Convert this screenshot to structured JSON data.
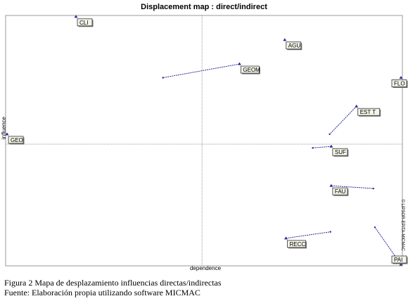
{
  "caption": {
    "line1": "Figura 2 Mapa de desplazamiento influencias directas/indirectas",
    "line2": "Fuente: Elaboración propia utilizando software MICMAC"
  },
  "colors": {
    "vector": "#2a2a9a",
    "axis": "#999999",
    "frame": "#9a9a9a",
    "label_bg": "#f4f4e8"
  },
  "chart_data": {
    "type": "scatter",
    "title": "Displacement map : direct/indirect",
    "xlabel": "dependence",
    "ylabel": "influence",
    "watermark": "© LIPSOR-EPITA-MICMAC",
    "xlim": [
      0,
      100
    ],
    "ylim": [
      0,
      100
    ],
    "grid": false,
    "axis_cross": {
      "x": 49.5,
      "y": 48.3
    },
    "points": [
      {
        "name": "CLI",
        "direct": [
          17.5,
          99.5
        ],
        "indirect": [
          17.5,
          99.5
        ]
      },
      {
        "name": "GEOM",
        "direct": [
          59.0,
          80.5
        ],
        "indirect": [
          39.6,
          75.0
        ]
      },
      {
        "name": "AGU",
        "direct": [
          70.5,
          90.2
        ],
        "indirect": [
          70.5,
          90.2
        ]
      },
      {
        "name": "FLO",
        "direct": [
          100.0,
          75.0
        ],
        "indirect": [
          100.0,
          75.0
        ]
      },
      {
        "name": "EST T",
        "direct": [
          88.7,
          63.5
        ],
        "indirect": [
          81.9,
          52.3
        ]
      },
      {
        "name": "GEO",
        "direct": [
          0.0,
          52.3
        ],
        "indirect": [
          0.0,
          52.3
        ]
      },
      {
        "name": "SUF",
        "direct": [
          82.3,
          47.4
        ],
        "indirect": [
          77.6,
          46.8
        ]
      },
      {
        "name": "FAU",
        "direct": [
          82.3,
          31.6
        ],
        "indirect": [
          93.0,
          30.5
        ]
      },
      {
        "name": "RECC",
        "direct": [
          70.8,
          10.5
        ],
        "indirect": [
          82.1,
          13.1
        ]
      },
      {
        "name": "PAI",
        "direct": [
          100.0,
          0.0
        ],
        "indirect": [
          93.4,
          14.9
        ]
      }
    ]
  }
}
